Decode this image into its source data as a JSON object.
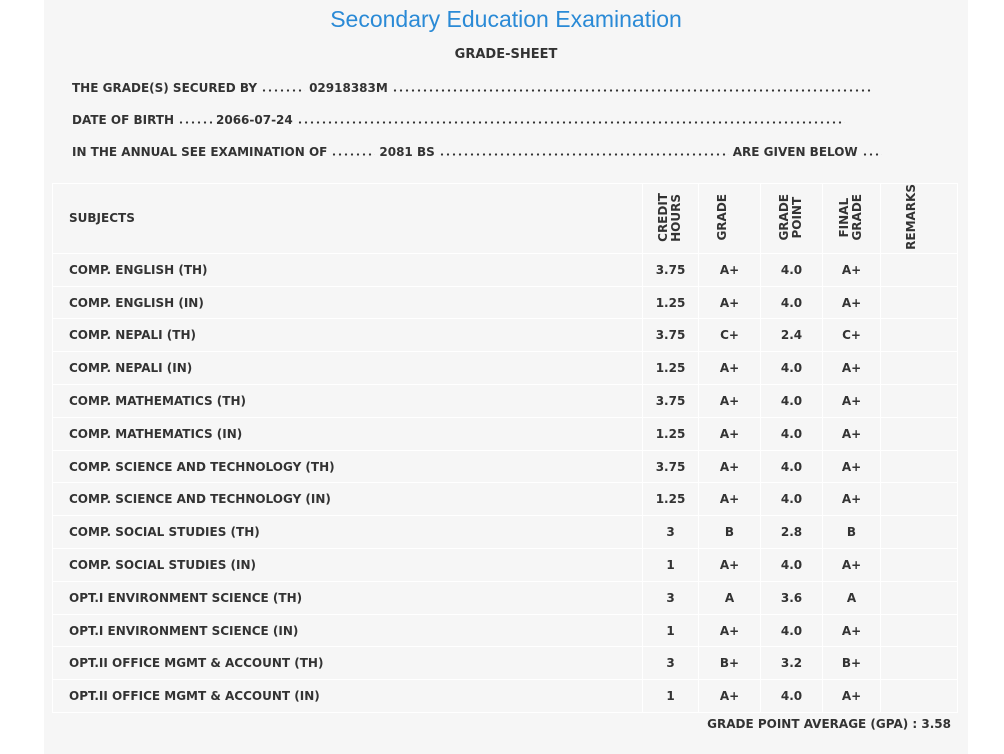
{
  "header": {
    "title": "Secondary Education Examination",
    "subtitle": "GRADE-SHEET"
  },
  "info": {
    "secured_by_label": "THE GRADE(S) SECURED BY",
    "symbol_no": "02918383M",
    "dob_label": "DATE OF BIRTH",
    "dob": "2066-07-24",
    "exam_label": "IN THE ANNUAL SEE EXAMINATION OF",
    "exam_year": "2081 BS",
    "exam_suffix": "ARE GIVEN BELOW"
  },
  "table": {
    "columns": [
      "SUBJECTS",
      "CREDIT HOURS",
      "GRADE",
      "GRADE POINT",
      "FINAL GRADE",
      "REMARKS"
    ],
    "rows": [
      [
        "COMP. ENGLISH (TH)",
        "3.75",
        "A+",
        "4.0",
        "A+"
      ],
      [
        "COMP. ENGLISH (IN)",
        "1.25",
        "A+",
        "4.0",
        "A+"
      ],
      [
        "COMP. NEPALI (TH)",
        "3.75",
        "C+",
        "2.4",
        "C+"
      ],
      [
        "COMP. NEPALI (IN)",
        "1.25",
        "A+",
        "4.0",
        "A+"
      ],
      [
        "COMP. MATHEMATICS (TH)",
        "3.75",
        "A+",
        "4.0",
        "A+"
      ],
      [
        "COMP. MATHEMATICS (IN)",
        "1.25",
        "A+",
        "4.0",
        "A+"
      ],
      [
        "COMP. SCIENCE AND TECHNOLOGY (TH)",
        "3.75",
        "A+",
        "4.0",
        "A+"
      ],
      [
        "COMP. SCIENCE AND TECHNOLOGY (IN)",
        "1.25",
        "A+",
        "4.0",
        "A+"
      ],
      [
        "COMP. SOCIAL STUDIES (TH)",
        "3",
        "B",
        "2.8",
        "B"
      ],
      [
        "COMP. SOCIAL STUDIES (IN)",
        "1",
        "A+",
        "4.0",
        "A+"
      ],
      [
        "OPT.I ENVIRONMENT SCIENCE (TH)",
        "3",
        "A",
        "3.6",
        "A"
      ],
      [
        "OPT.I ENVIRONMENT SCIENCE (IN)",
        "1",
        "A+",
        "4.0",
        "A+"
      ],
      [
        "OPT.II OFFICE MGMT & ACCOUNT (TH)",
        "3",
        "B+",
        "3.2",
        "B+"
      ],
      [
        "OPT.II OFFICE MGMT & ACCOUNT (IN)",
        "1",
        "A+",
        "4.0",
        "A+"
      ]
    ]
  },
  "footer": {
    "gpa_label": "GRADE POINT AVERAGE (GPA) :",
    "gpa": "3.58"
  }
}
